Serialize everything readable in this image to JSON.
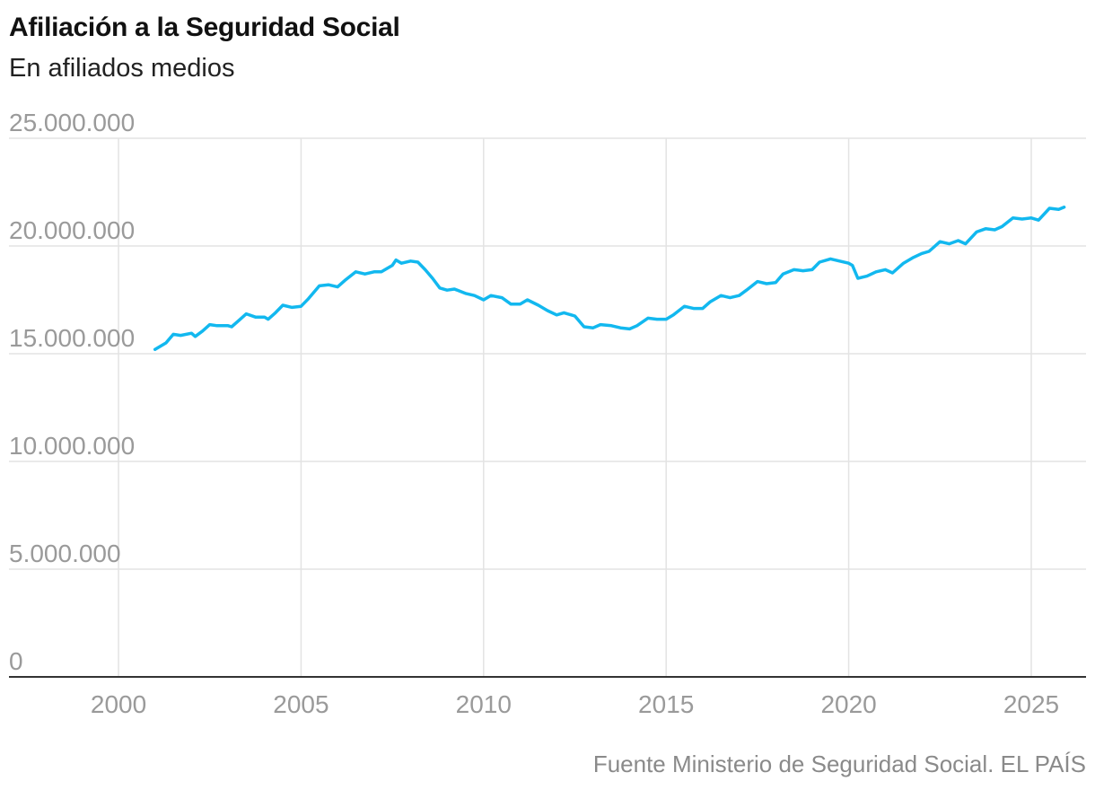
{
  "chart_data": {
    "type": "line",
    "title": "Afiliación a la Seguridad Social",
    "subtitle": "En afiliados medios",
    "source": "Fuente Ministerio de Seguridad Social. EL PAÍS",
    "xlabel": "",
    "ylabel": "",
    "xlim": [
      1997,
      2026.5
    ],
    "ylim": [
      0,
      25000000
    ],
    "grid": true,
    "colors": {
      "line": "#12b8ef",
      "grid": "#e3e3e3",
      "axis": "#333333",
      "tick_text": "#9a9a9a"
    },
    "y_ticks": [
      {
        "value": 0,
        "label": "0"
      },
      {
        "value": 5000000,
        "label": "5.000.000"
      },
      {
        "value": 10000000,
        "label": "10.000.000"
      },
      {
        "value": 15000000,
        "label": "15.000.000"
      },
      {
        "value": 20000000,
        "label": "20.000.000"
      },
      {
        "value": 25000000,
        "label": "25.000.000"
      }
    ],
    "x_ticks": [
      {
        "value": 2000,
        "label": "2000"
      },
      {
        "value": 2005,
        "label": "2005"
      },
      {
        "value": 2010,
        "label": "2010"
      },
      {
        "value": 2015,
        "label": "2015"
      },
      {
        "value": 2020,
        "label": "2020"
      },
      {
        "value": 2025,
        "label": "2025"
      }
    ],
    "series": [
      {
        "name": "Afiliados medios",
        "x": [
          2001.0,
          2001.3,
          2001.5,
          2001.7,
          2002.0,
          2002.1,
          2002.3,
          2002.5,
          2002.7,
          2003.0,
          2003.1,
          2003.3,
          2003.5,
          2003.75,
          2004.0,
          2004.1,
          2004.3,
          2004.5,
          2004.75,
          2005.0,
          2005.2,
          2005.5,
          2005.75,
          2006.0,
          2006.2,
          2006.5,
          2006.75,
          2007.0,
          2007.2,
          2007.5,
          2007.6,
          2007.75,
          2008.0,
          2008.2,
          2008.4,
          2008.6,
          2008.8,
          2009.0,
          2009.2,
          2009.5,
          2009.75,
          2010.0,
          2010.2,
          2010.5,
          2010.75,
          2011.0,
          2011.2,
          2011.5,
          2011.75,
          2012.0,
          2012.2,
          2012.5,
          2012.75,
          2013.0,
          2013.2,
          2013.5,
          2013.75,
          2014.0,
          2014.2,
          2014.5,
          2014.75,
          2015.0,
          2015.2,
          2015.5,
          2015.75,
          2016.0,
          2016.2,
          2016.5,
          2016.75,
          2017.0,
          2017.2,
          2017.5,
          2017.75,
          2018.0,
          2018.2,
          2018.5,
          2018.75,
          2019.0,
          2019.2,
          2019.5,
          2019.75,
          2020.0,
          2020.1,
          2020.25,
          2020.5,
          2020.75,
          2021.0,
          2021.2,
          2021.5,
          2021.75,
          2022.0,
          2022.2,
          2022.5,
          2022.75,
          2023.0,
          2023.2,
          2023.5,
          2023.75,
          2024.0,
          2024.2,
          2024.5,
          2024.75,
          2025.0,
          2025.2,
          2025.5,
          2025.75,
          2025.9
        ],
        "values": [
          15200000,
          15500000,
          15900000,
          15850000,
          15950000,
          15800000,
          16050000,
          16350000,
          16300000,
          16300000,
          16250000,
          16550000,
          16850000,
          16700000,
          16700000,
          16600000,
          16900000,
          17250000,
          17150000,
          17200000,
          17550000,
          18150000,
          18200000,
          18100000,
          18400000,
          18800000,
          18700000,
          18800000,
          18800000,
          19100000,
          19350000,
          19200000,
          19300000,
          19250000,
          18900000,
          18500000,
          18050000,
          17950000,
          18000000,
          17800000,
          17700000,
          17500000,
          17700000,
          17600000,
          17300000,
          17300000,
          17500000,
          17250000,
          17000000,
          16800000,
          16900000,
          16750000,
          16250000,
          16200000,
          16350000,
          16300000,
          16200000,
          16150000,
          16300000,
          16650000,
          16600000,
          16600000,
          16800000,
          17200000,
          17100000,
          17100000,
          17400000,
          17700000,
          17600000,
          17700000,
          17950000,
          18350000,
          18250000,
          18300000,
          18700000,
          18900000,
          18850000,
          18900000,
          19250000,
          19400000,
          19300000,
          19200000,
          19100000,
          18500000,
          18600000,
          18800000,
          18900000,
          18750000,
          19200000,
          19450000,
          19650000,
          19750000,
          20200000,
          20100000,
          20250000,
          20100000,
          20650000,
          20800000,
          20750000,
          20900000,
          21300000,
          21250000,
          21300000,
          21200000,
          21750000,
          21700000,
          21800000
        ]
      }
    ]
  }
}
